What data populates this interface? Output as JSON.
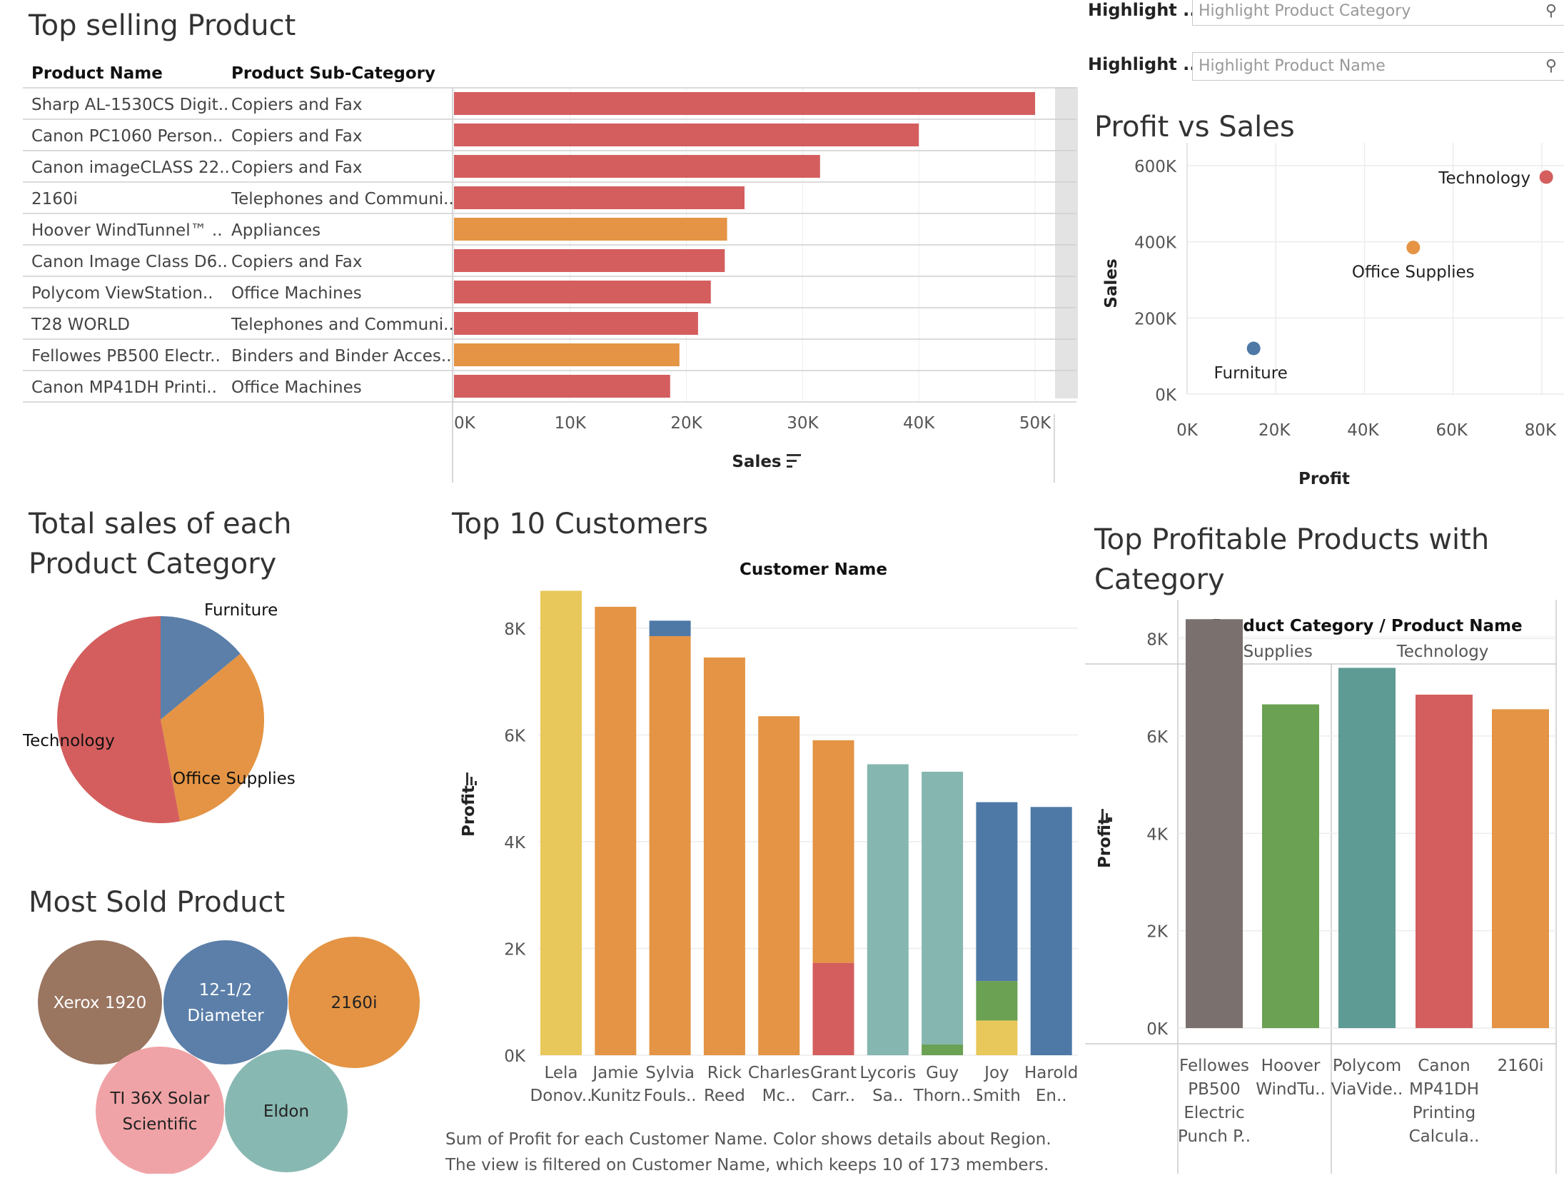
{
  "filters": [
    {
      "label": "Highlight ...",
      "placeholder": "Highlight Product Category"
    },
    {
      "label": "Highlight ...",
      "placeholder": "Highlight Product Name"
    }
  ],
  "top_selling": {
    "title": "Top selling Product",
    "col1": "Product Name",
    "col2": "Product Sub-Category",
    "axis_label": "Sales",
    "chart_data": {
      "type": "bar",
      "xlabel": "Sales",
      "xlim": [
        0,
        50000
      ],
      "ticks": [
        "0K",
        "10K",
        "20K",
        "30K",
        "40K",
        "50K"
      ],
      "rows": [
        {
          "name": "Sharp AL-1530CS Digit..",
          "sub": "Copiers and Fax",
          "value": 50000,
          "color": "#d45e5e"
        },
        {
          "name": "Canon PC1060 Person..",
          "sub": "Copiers and Fax",
          "value": 40000,
          "color": "#d45e5e"
        },
        {
          "name": "Canon imageCLASS 22..",
          "sub": "Copiers and Fax",
          "value": 31500,
          "color": "#d45e5e"
        },
        {
          "name": "2160i",
          "sub": "Telephones and Communi..",
          "value": 25000,
          "color": "#d45e5e"
        },
        {
          "name": "Hoover WindTunnel™ ..",
          "sub": "Appliances",
          "value": 23500,
          "color": "#e49444"
        },
        {
          "name": "Canon Image Class D6..",
          "sub": "Copiers and Fax",
          "value": 23300,
          "color": "#d45e5e"
        },
        {
          "name": "Polycom ViewStation..",
          "sub": "Office Machines",
          "value": 22100,
          "color": "#d45e5e"
        },
        {
          "name": "T28 WORLD",
          "sub": "Telephones and Communi..",
          "value": 21000,
          "color": "#d45e5e"
        },
        {
          "name": "Fellowes PB500 Electr..",
          "sub": "Binders and Binder Acces..",
          "value": 19400,
          "color": "#e49444"
        },
        {
          "name": "Canon MP41DH Printi..",
          "sub": "Office Machines",
          "value": 18600,
          "color": "#d45e5e"
        }
      ]
    }
  },
  "profit_vs_sales": {
    "title": "Profit vs Sales",
    "chart_data": {
      "type": "scatter",
      "xlabel": "Profit",
      "ylabel": "Sales",
      "xlim": [
        0,
        85000
      ],
      "ylim": [
        0,
        660000
      ],
      "xticks": [
        "0K",
        "20K",
        "40K",
        "60K",
        "80K"
      ],
      "yticks": [
        "0K",
        "200K",
        "400K",
        "600K"
      ],
      "points": [
        {
          "label": "Technology",
          "x": 81000,
          "y": 570000,
          "color": "#d45e5e"
        },
        {
          "label": "Office Supplies",
          "x": 51000,
          "y": 385000,
          "color": "#e49444"
        },
        {
          "label": "Furniture",
          "x": 15000,
          "y": 120000,
          "color": "#4e79a7"
        }
      ]
    }
  },
  "category_pie": {
    "title_line1": "Total sales of each",
    "title_line2": "Product Category",
    "chart_data": {
      "type": "pie",
      "slices": [
        {
          "label": "Furniture",
          "value": 14,
          "color": "#5b7fa9"
        },
        {
          "label": "Office Supplies",
          "value": 33,
          "color": "#e49444"
        },
        {
          "label": "Technology",
          "value": 53,
          "color": "#d45e5e"
        }
      ]
    }
  },
  "most_sold": {
    "title": "Most Sold Product",
    "bubbles": [
      {
        "label": "Xerox 1920",
        "color": "#9a7560"
      },
      {
        "label1": "12-1/2",
        "label2": "Diameter",
        "color": "#5b7fa9"
      },
      {
        "label": "2160i",
        "color": "#e49444"
      },
      {
        "label1": "TI 36X Solar",
        "label2": "Scientific",
        "color": "#f0a3a6"
      },
      {
        "label": "Eldon",
        "color": "#88b8b2"
      }
    ]
  },
  "top_customers": {
    "title": "Top 10 Customers",
    "header": "Customer Name",
    "caption": "Sum of Profit for each Customer Name.  Color shows details about Region. The view is filtered on Customer Name, which keeps 10 of 173 members.",
    "chart_data": {
      "type": "bar",
      "ylabel": "Profit",
      "ylim": [
        0,
        8800
      ],
      "yticks": [
        "0K",
        "2K",
        "4K",
        "6K",
        "8K"
      ],
      "bars": [
        {
          "l1": "Lela",
          "l2": "Donov..",
          "segments": [
            {
              "value": 8700,
              "color": "#e8c75b"
            }
          ]
        },
        {
          "l1": "Jamie",
          "l2": "Kunitz",
          "segments": [
            {
              "value": 8400,
              "color": "#e49444"
            }
          ]
        },
        {
          "l1": "Sylvia",
          "l2": "Fouls..",
          "segments": [
            {
              "value": 7850,
              "color": "#e49444"
            },
            {
              "value": 290,
              "color": "#4e79a7"
            }
          ]
        },
        {
          "l1": "Rick",
          "l2": "Reed",
          "segments": [
            {
              "value": 7450,
              "color": "#e49444"
            }
          ]
        },
        {
          "l1": "Charles",
          "l2": "Mc..",
          "segments": [
            {
              "value": 6350,
              "color": "#e49444"
            }
          ]
        },
        {
          "l1": "Grant",
          "l2": "Carr..",
          "segments": [
            {
              "value": 1730,
              "color": "#d45e5e"
            },
            {
              "value": 4170,
              "color": "#e49444"
            }
          ]
        },
        {
          "l1": "Lycoris",
          "l2": "Sa..",
          "segments": [
            {
              "value": 5450,
              "color": "#86b6b0"
            }
          ]
        },
        {
          "l1": "Guy",
          "l2": "Thorn..",
          "segments": [
            {
              "value": 200,
              "color": "#6aa153"
            },
            {
              "value": 5110,
              "color": "#86b6b0"
            }
          ]
        },
        {
          "l1": "Joy",
          "l2": "Smith",
          "segments": [
            {
              "value": 650,
              "color": "#e8c75b"
            },
            {
              "value": 740,
              "color": "#6aa153"
            },
            {
              "value": 3350,
              "color": "#4e79a7"
            }
          ]
        },
        {
          "l1": "Harold",
          "l2": "En..",
          "segments": [
            {
              "value": 4650,
              "color": "#4e79a7"
            }
          ]
        }
      ]
    }
  },
  "top_profitable": {
    "title_line1": "Top Profitable Products with",
    "title_line2": "Category",
    "header": "Product Category / Product Name",
    "groups": [
      "Office Supplies",
      "Technology"
    ],
    "chart_data": {
      "type": "bar",
      "ylabel": "Profit",
      "ylim": [
        0,
        8800
      ],
      "yticks": [
        "0K",
        "2K",
        "4K",
        "6K",
        "8K"
      ],
      "bars": [
        {
          "lines": [
            "Fellowes",
            "PB500",
            "Electric",
            "Punch P.."
          ],
          "value": 8400,
          "color": "#7a716e"
        },
        {
          "lines": [
            "Hoover",
            "WindTu.."
          ],
          "value": 6650,
          "color": "#6aa153"
        },
        {
          "lines": [
            "Polycom",
            "ViaVide.."
          ],
          "value": 7400,
          "color": "#5e9b95"
        },
        {
          "lines": [
            "Canon",
            "MP41DH",
            "Printing",
            "Calcula.."
          ],
          "value": 6850,
          "color": "#d45e5e"
        },
        {
          "lines": [
            "2160i"
          ],
          "value": 6550,
          "color": "#e49444"
        }
      ]
    }
  }
}
